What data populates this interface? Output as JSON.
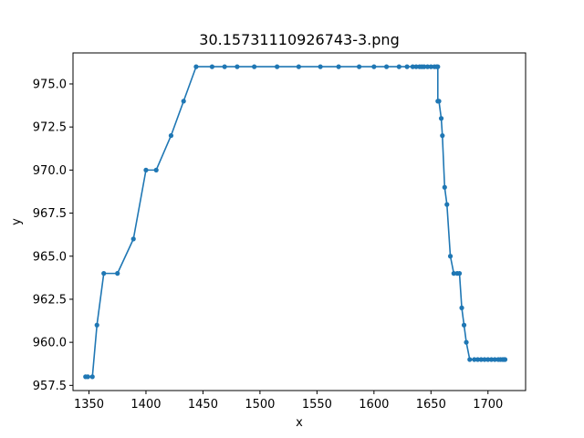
{
  "chart_data": {
    "type": "line",
    "title": "30.15731110926743-3.png",
    "xlabel": "x",
    "ylabel": "y",
    "xlim": [
      1336,
      1733
    ],
    "ylim": [
      957.2,
      976.8
    ],
    "xticks": [
      1350,
      1400,
      1450,
      1500,
      1550,
      1600,
      1650,
      1700
    ],
    "yticks": [
      957.5,
      960.0,
      962.5,
      965.0,
      967.5,
      970.0,
      972.5,
      975.0
    ],
    "xtick_labels": [
      "1350",
      "1400",
      "1450",
      "1500",
      "1550",
      "1600",
      "1650",
      "1700"
    ],
    "ytick_labels": [
      "957.5",
      "960.0",
      "962.5",
      "965.0",
      "967.5",
      "970.0",
      "972.5",
      "975.0"
    ],
    "grid": false,
    "series": [
      {
        "color": "#1f77b4",
        "marker": "circle",
        "x": [
          1347,
          1349,
          1353,
          1357,
          1363,
          1375,
          1389,
          1400,
          1409,
          1422,
          1433,
          1444,
          1458,
          1469,
          1480,
          1495,
          1515,
          1534,
          1553,
          1569,
          1587,
          1600,
          1611,
          1622,
          1629,
          1634,
          1637,
          1640,
          1642,
          1644,
          1647,
          1650,
          1653,
          1655,
          1656,
          1656,
          1657,
          1659,
          1660,
          1662,
          1664,
          1667,
          1670,
          1673,
          1675,
          1677,
          1679,
          1681,
          1684,
          1688,
          1691,
          1694,
          1697,
          1700,
          1703,
          1706,
          1709,
          1711,
          1713,
          1714,
          1715
        ],
        "y": [
          958,
          958,
          958,
          961,
          964,
          964,
          966,
          970,
          970,
          972,
          974,
          976,
          976,
          976,
          976,
          976,
          976,
          976,
          976,
          976,
          976,
          976,
          976,
          976,
          976,
          976,
          976,
          976,
          976,
          976,
          976,
          976,
          976,
          976,
          976,
          974,
          974,
          973,
          972,
          969,
          968,
          965,
          964,
          964,
          964,
          962,
          961,
          960,
          959,
          959,
          959,
          959,
          959,
          959,
          959,
          959,
          959,
          959,
          959,
          959,
          959
        ]
      }
    ]
  }
}
